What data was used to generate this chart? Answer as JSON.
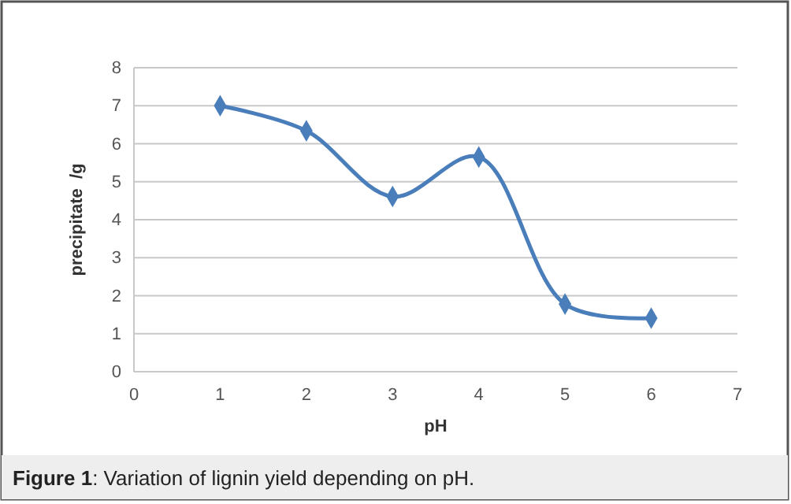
{
  "chart_data": {
    "type": "line",
    "xlabel": "pH",
    "ylabel": "precipitate  /g",
    "x": [
      1,
      2,
      3,
      4,
      5,
      6
    ],
    "series": [
      {
        "color": "#4a7ebb",
        "values": [
          7.0,
          6.34,
          4.61,
          5.65,
          1.78,
          1.41
        ]
      }
    ],
    "xlim": [
      0,
      7
    ],
    "xticks": [
      0,
      1,
      2,
      3,
      4,
      5,
      6,
      7
    ],
    "ylim": [
      0,
      8
    ],
    "yticks": [
      0,
      1,
      2,
      3,
      4,
      5,
      6,
      7,
      8
    ],
    "grid": "y",
    "marker": "diamond",
    "line_style": "solid",
    "annotations": [
      "Figure 1: Variation of lignin yield depending on pH."
    ]
  }
}
